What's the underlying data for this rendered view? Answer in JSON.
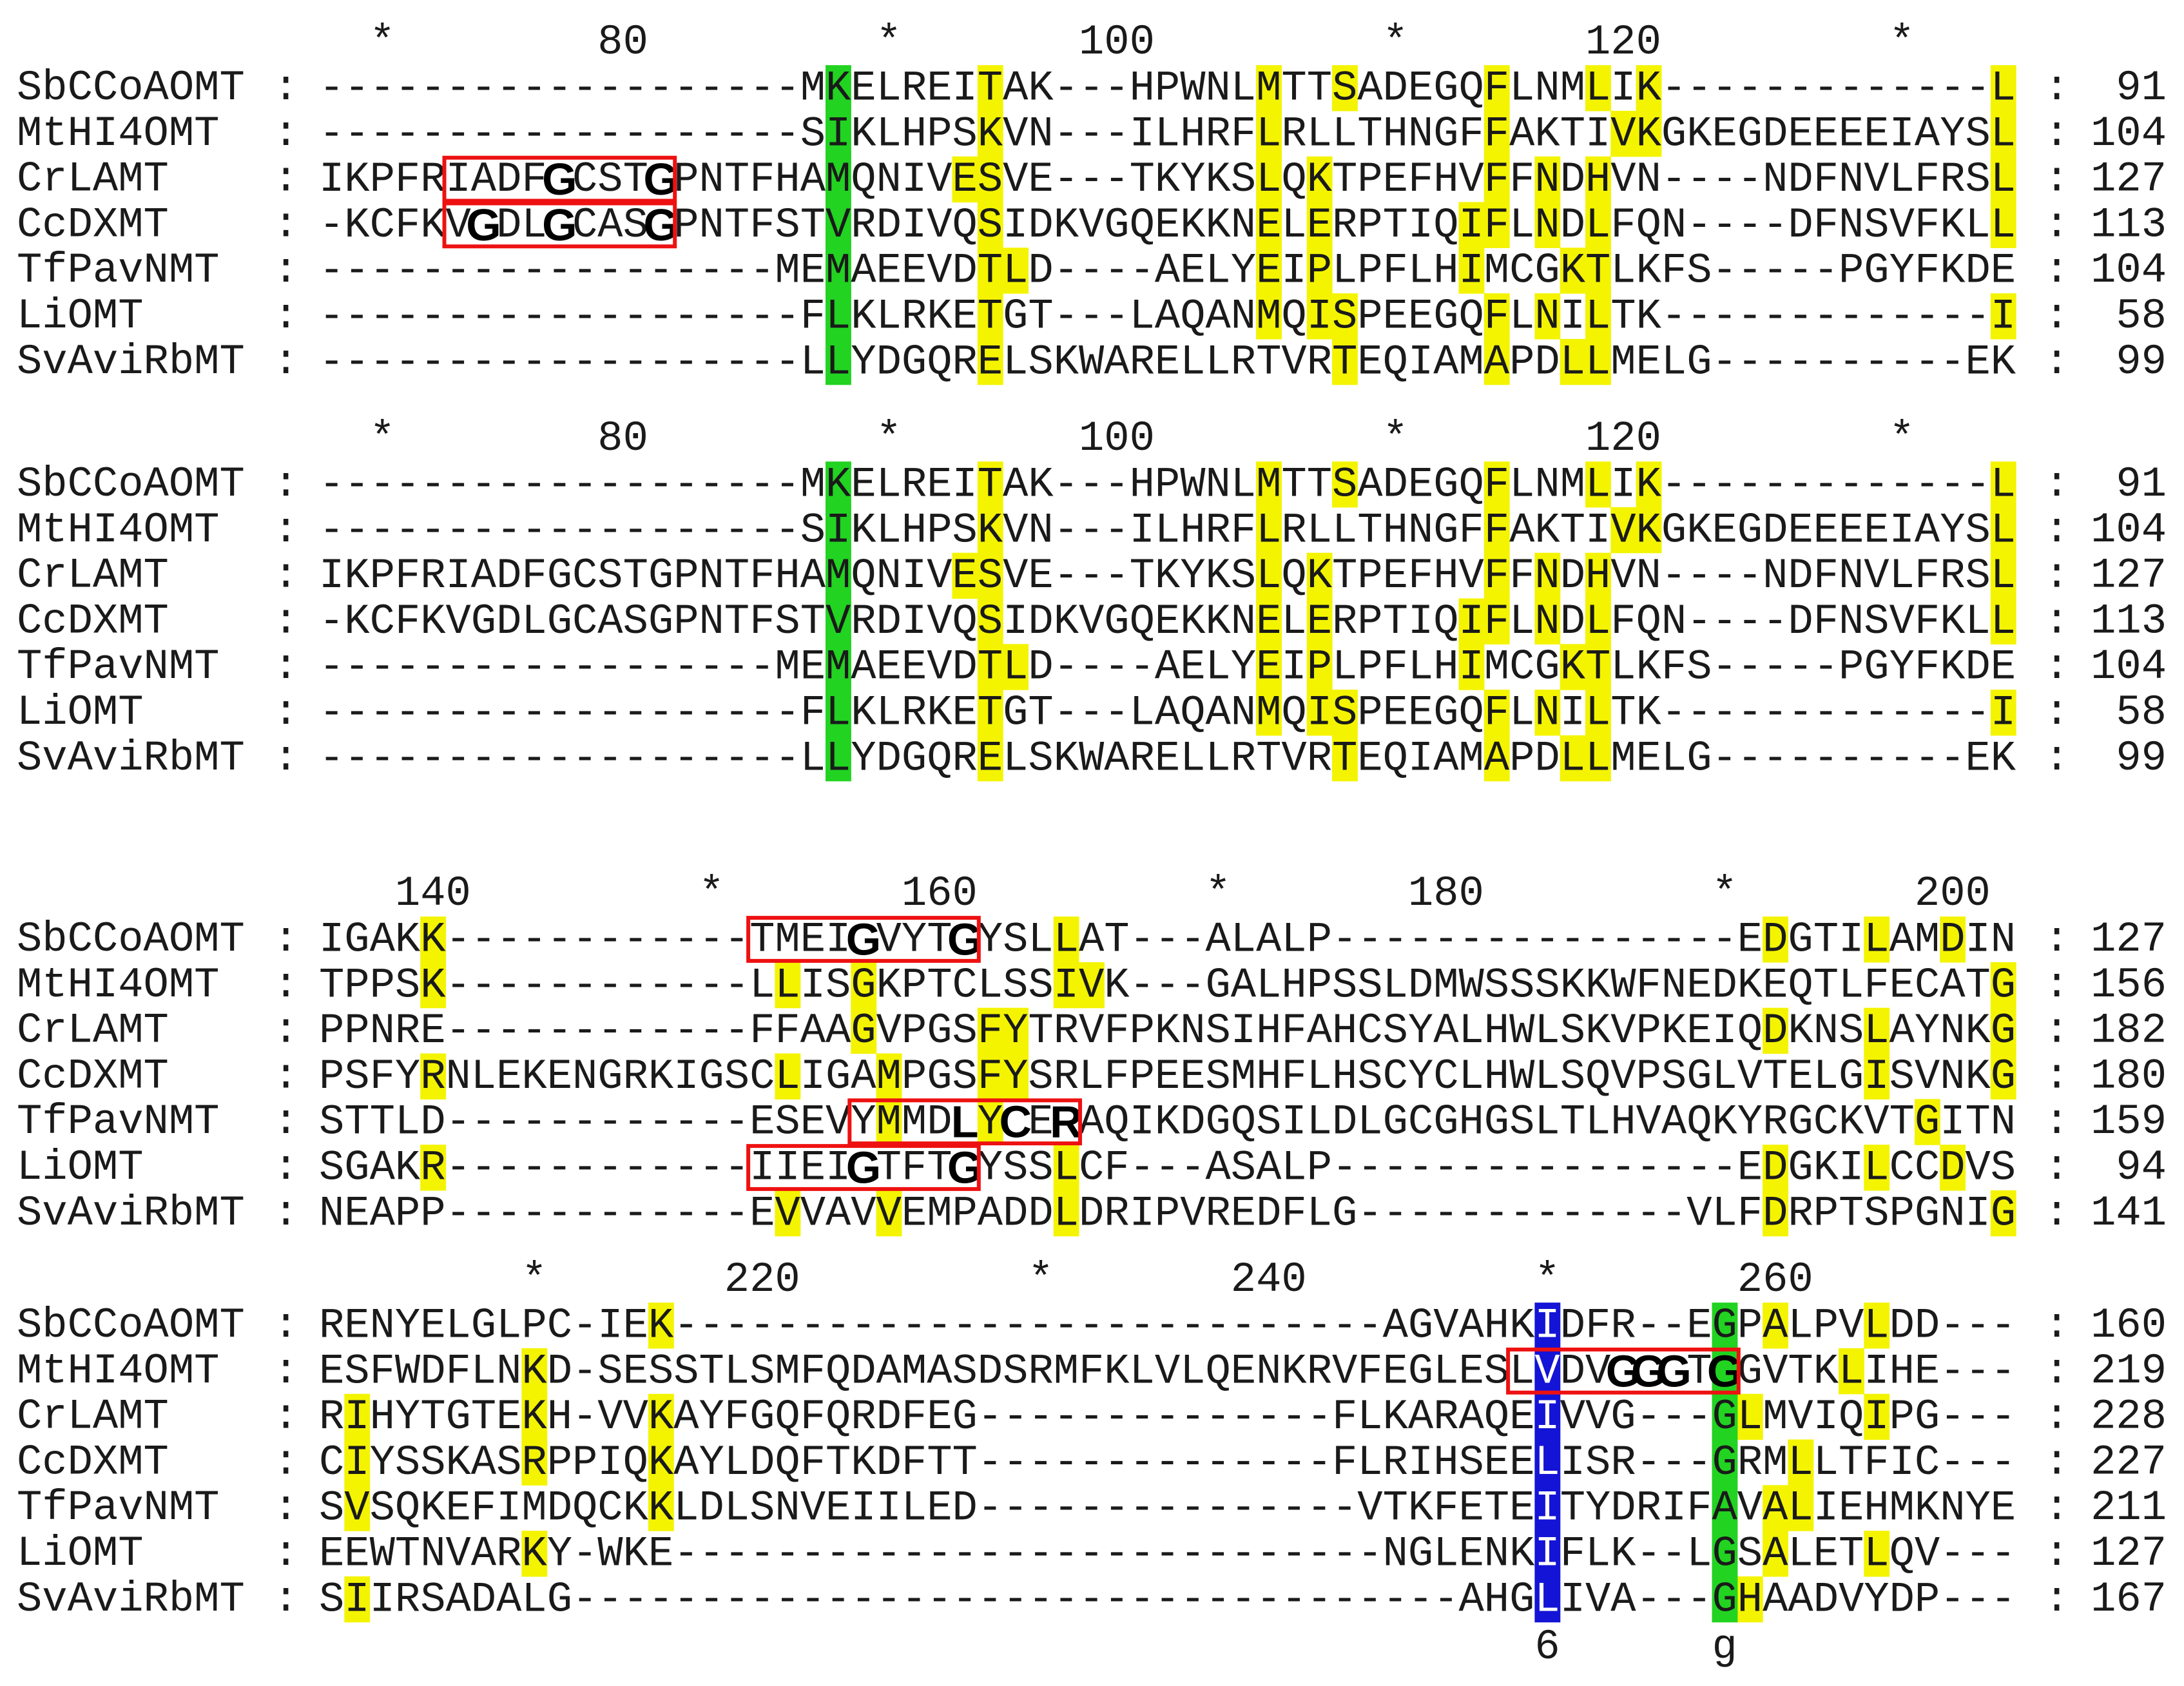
{
  "separator": ":",
  "blocks": [
    {
      "ruler": "  *        80         *       100         *       120         *",
      "rows": [
        {
          "name": "SbCCoAOMT",
          "sequence": "-------------------MKELREITAK---HPWNLMTTSADEGQFLNMLIK-------------L",
          "end": 91
        },
        {
          "name": "MtHI4OMT",
          "sequence": "-------------------SIKLHPSKVN---ILHRFLRLLTHNGFFAKTIVKGKEGDEEEEIAYSL",
          "end": 104
        },
        {
          "name": "CrLAMT",
          "sequence": "IKPFRIADFGCSTGPNTFHAMQNIVESVE---TKYKSLQKTPEFHVFFNDHVN----NDFNVLFRSL",
          "end": 127
        },
        {
          "name": "CcDXMT",
          "sequence": "-KCFKVGDLGCASGPNTFSTVRDIVQSIDKVGQEKKNELERPTIQIFLNDLFQN----DFNSVFKLL",
          "end": 113
        },
        {
          "name": "TfPavNMT",
          "sequence": "------------------MEMAEEVDTLD----AELYEIPLPFLHIMCGKTLKFS-----PGYFKDE",
          "end": 104
        },
        {
          "name": "LiOMT",
          "sequence": "-------------------FLKLRKETGT---LAQANMQISPEEGQFLNILTK-------------I",
          "end": 58
        },
        {
          "name": "SvAviRbMT",
          "sequence": "-------------------LLYDGQRELSKWARELLRTVRTEQIAMAPDLLMELG----------EK",
          "end": 99
        }
      ]
    },
    {
      "ruler": "  *        80         *       100         *       120         *",
      "rows": [
        {
          "name": "SbCCoAOMT",
          "sequence": "-------------------MKELREITAK---HPWNLMTTSADEGQFLNMLIK-------------L",
          "end": 91
        },
        {
          "name": "MtHI4OMT",
          "sequence": "-------------------SIKLHPSKVN---ILHRFLRLLTHNGFFAKTIVKGKEGDEEEEIAYSL",
          "end": 104
        },
        {
          "name": "CrLAMT",
          "sequence": "IKPFRIADFGCSTGPNTFHAMQNIVESVE---TKYKSLQKTPEFHVFFNDHVN----NDFNVLFRSL",
          "end": 127
        },
        {
          "name": "CcDXMT",
          "sequence": "-KCFKVGDLGCASGPNTFSTVRDIVQSIDKVGQEKKNELERPTIQIFLNDLFQN----DFNSVFKLL",
          "end": 113
        },
        {
          "name": "TfPavNMT",
          "sequence": "------------------MEMAEEVDTLD----AELYEIPLPFLHIMCGKTLKFS-----PGYFKDE",
          "end": 104
        },
        {
          "name": "LiOMT",
          "sequence": "-------------------FLKLRKETGT---LAQANMQISPEEGQFLNILTK-------------I",
          "end": 58
        },
        {
          "name": "SvAviRbMT",
          "sequence": "-------------------LLYDGQRELSKWARELLRTVRTEQIAMAPDLLMELG----------EK",
          "end": 99
        }
      ]
    },
    {
      "ruler": "   140         *       160         *       180         *       200",
      "rows": [
        {
          "name": "SbCCoAOMT",
          "sequence": "IGAKK------------TMEIGVYTGYSLLAT---ALALP----------------EDGTILAMDIN",
          "end": 127
        },
        {
          "name": "MtHI4OMT",
          "sequence": "TPPSK------------LLISGKPTCLSSIVK---GALHPSSLDMWSSSKKWFNEDKEQTLFECATG",
          "end": 156
        },
        {
          "name": "CrLAMT",
          "sequence": "PPNRE------------FFAAGVPGSFYTRVFPKNSIHFAHCSYALHWLSKVPKEIQDKNSLAYNKG",
          "end": 182
        },
        {
          "name": "CcDXMT",
          "sequence": "PSFYRNLEKENGRKIGSCLIGAMPGSFYSRLFPEESMHFLHSCYCLHWLSQVPSGLVTELGISVNKG",
          "end": 180
        },
        {
          "name": "TfPavNMT",
          "sequence": "STTLD------------ESEVYMMDLYCERAQIKDGQSILDLGCGHGSLTLHVAQKYRGCKVTGITN",
          "end": 159
        },
        {
          "name": "LiOMT",
          "sequence": "SGAKR------------IIEIGTFTGYSSLCF---ASALP----------------EDGKILCCDVS",
          "end": 94
        },
        {
          "name": "SvAviRbMT",
          "sequence": "NEAPP------------EVVAVVEMPADDLDRIPVREDFLG-------------VLFDRPTSPGNIG",
          "end": 141
        }
      ]
    },
    {
      "ruler": "        *       220         *       240         *       260",
      "rows": [
        {
          "name": "SbCCoAOMT",
          "sequence": "RENYELGLPC-IEK----------------------------AGVAHKIDFR--EGPALPVLDD---",
          "end": 160
        },
        {
          "name": "MtHI4OMT",
          "sequence": "ESFWDFLNKD-SESSTLSMFQDAMASDSRMFKLVLQENKRVFEGLESLVDVGGGTGGVTKLIHE---",
          "end": 219
        },
        {
          "name": "CrLAMT",
          "sequence": "RIHYTGTEKH-VVKAYFGQFQRDFEG--------------FLKARAQEIVVG---GLMVIQIPG---",
          "end": 228
        },
        {
          "name": "CcDXMT",
          "sequence": "CIYSSKASRPPIQKAYLDQFTKDFTT--------------FLRIHSEELISR---GRMLLTFIC---",
          "end": 227
        },
        {
          "name": "TfPavNMT",
          "sequence": "SVSQKEFIMDQCKKLDLSNVEIILED---------------VTKFETEITYDRIFAVALIEHMKNYE",
          "end": 211
        },
        {
          "name": "LiOMT",
          "sequence": "EEWTNVARKY-WKE----------------------------NGLENKIFLK--LGSALETLQV---",
          "end": 127
        },
        {
          "name": "SvAviRbMT",
          "sequence": "SIIRSADALG-----------------------------------AHGLIVA---GHAADVYDP---",
          "end": 167
        }
      ]
    }
  ],
  "footer": "                                                6      g"
}
